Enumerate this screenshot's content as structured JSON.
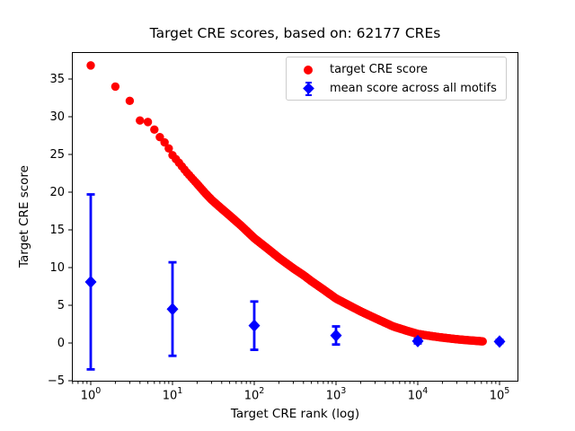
{
  "figure": {
    "title": "Target CRE scores, based on: 62177 CREs",
    "xlabel": "Target CRE rank (log)",
    "ylabel": "Target CRE score"
  },
  "legend": {
    "position": "upper right",
    "items": [
      {
        "label": "target CRE score",
        "marker": "circle",
        "color": "#ff0000"
      },
      {
        "label": "mean score across all motifs",
        "marker": "diamond-errorbar",
        "color": "#0000ff"
      }
    ]
  },
  "chart_data": {
    "type": "scatter",
    "title": "Target CRE scores, based on: 62177 CREs",
    "xlabel": "Target CRE rank (log)",
    "ylabel": "Target CRE score",
    "x_scale": "log",
    "xlim": [
      0.59,
      150000
    ],
    "ylim": [
      -5.1,
      38.6
    ],
    "x_tick_exponents": [
      0,
      1,
      2,
      3,
      4,
      5
    ],
    "y_ticks": [
      -5,
      0,
      5,
      10,
      15,
      20,
      25,
      30,
      35
    ],
    "grid": false,
    "n_cres": 62177,
    "series": [
      {
        "name": "target CRE score",
        "type": "scatter",
        "marker": "circle",
        "color": "#ff0000",
        "note": "dense scatter of ranks 1..62177; anchors sampled as [rank, score]",
        "anchors": [
          [
            1,
            36.8
          ],
          [
            2,
            34.0
          ],
          [
            3,
            32.1
          ],
          [
            4,
            29.5
          ],
          [
            5,
            29.3
          ],
          [
            6,
            28.3
          ],
          [
            7,
            27.3
          ],
          [
            8,
            26.6
          ],
          [
            9,
            25.8
          ],
          [
            10,
            24.9
          ],
          [
            12,
            23.9
          ],
          [
            15,
            22.6
          ],
          [
            20,
            21.1
          ],
          [
            25,
            19.9
          ],
          [
            30,
            19.0
          ],
          [
            40,
            17.8
          ],
          [
            50,
            16.9
          ],
          [
            70,
            15.5
          ],
          [
            100,
            13.9
          ],
          [
            150,
            12.4
          ],
          [
            200,
            11.3
          ],
          [
            300,
            9.9
          ],
          [
            400,
            9.0
          ],
          [
            500,
            8.2
          ],
          [
            700,
            7.1
          ],
          [
            1000,
            5.9
          ],
          [
            1500,
            4.9
          ],
          [
            2000,
            4.2
          ],
          [
            3000,
            3.3
          ],
          [
            5000,
            2.2
          ],
          [
            7000,
            1.7
          ],
          [
            10000,
            1.2
          ],
          [
            15000,
            0.9
          ],
          [
            20000,
            0.72
          ],
          [
            30000,
            0.5
          ],
          [
            40000,
            0.38
          ],
          [
            50000,
            0.3
          ],
          [
            62177,
            0.22
          ]
        ]
      },
      {
        "name": "mean score across all motifs",
        "type": "errorbar",
        "marker": "diamond",
        "color": "#0000ff",
        "points": [
          {
            "x": 1,
            "y": 8.1,
            "err": 11.6
          },
          {
            "x": 10,
            "y": 4.5,
            "err": 6.2
          },
          {
            "x": 100,
            "y": 2.3,
            "err": 3.2
          },
          {
            "x": 1000,
            "y": 1.0,
            "err": 1.2
          },
          {
            "x": 10000,
            "y": 0.25,
            "err": 0.3
          },
          {
            "x": 100000,
            "y": 0.2,
            "err": 0.2
          }
        ]
      }
    ]
  }
}
